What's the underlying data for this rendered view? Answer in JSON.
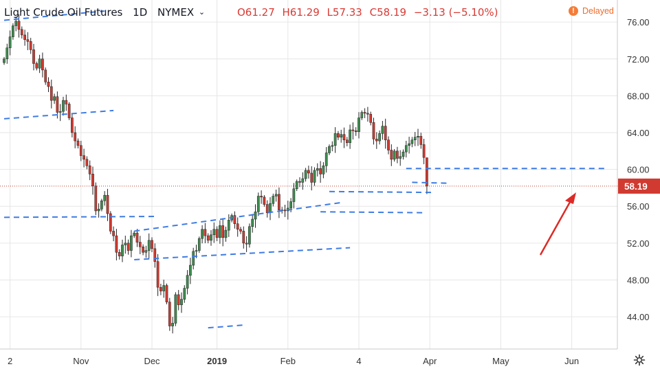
{
  "header": {
    "symbol": "Light Crude Oil Futures",
    "interval": "1D",
    "exchange": "NYMEX",
    "open": "O61.27",
    "high": "H61.29",
    "low": "L57.33",
    "close": "C58.19",
    "change": "−3.13 (−5.10%)",
    "delayed_label": "Delayed",
    "delayed_icon": "!"
  },
  "colors": {
    "up": "#3e8c4f",
    "down": "#d03a30",
    "trendline": "#3d7be3",
    "price_line": "#c0392b",
    "grid": "#e6e6e6",
    "arrow": "#dd2a26"
  },
  "chart_data": {
    "type": "candlestick",
    "instrument": "Light Crude Oil Futures",
    "y_axis": {
      "ticks": [
        44,
        48,
        52,
        56,
        60,
        64,
        68,
        72,
        76
      ],
      "ylim": [
        40.5,
        78.4
      ],
      "labels": [
        "44.00",
        "48.00",
        "52.00",
        "56.00",
        "60.00",
        "64.00",
        "68.00",
        "72.00",
        "76.00"
      ]
    },
    "x_axis": {
      "labels": [
        "2",
        "Nov",
        "Dec",
        "2019",
        "Feb",
        "4",
        "Apr",
        "May",
        "Jun"
      ],
      "label_index": [
        2,
        26,
        50,
        72,
        96,
        120,
        144,
        168,
        192
      ]
    },
    "last_price": {
      "value": 58.19,
      "label": "58.19"
    },
    "closes": [
      72.0,
      73.2,
      74.4,
      75.6,
      76.1,
      75.2,
      74.6,
      74.1,
      73.9,
      73.0,
      71.5,
      71.0,
      72.0,
      70.8,
      69.5,
      69.0,
      67.5,
      67.9,
      66.2,
      66.3,
      67.5,
      67.1,
      65.6,
      64.0,
      63.1,
      62.6,
      61.5,
      61.1,
      60.4,
      59.5,
      58.2,
      55.5,
      55.7,
      56.6,
      57.2,
      55.2,
      53.3,
      52.8,
      51.0,
      50.6,
      51.8,
      52.0,
      51.2,
      52.8,
      53.1,
      52.1,
      51.6,
      51.0,
      51.2,
      52.3,
      51.4,
      50.0,
      47.2,
      46.8,
      47.4,
      45.6,
      43.0,
      43.3,
      46.4,
      45.3,
      45.9,
      47.1,
      48.5,
      49.6,
      51.1,
      51.2,
      52.5,
      53.5,
      52.8,
      52.3,
      52.9,
      53.5,
      52.6,
      53.9,
      52.6,
      53.4,
      54.5,
      55.0,
      54.1,
      53.5,
      53.3,
      52.0,
      51.9,
      53.8,
      54.6,
      55.4,
      57.1,
      57.0,
      56.2,
      55.3,
      56.3,
      57.1,
      57.3,
      55.6,
      55.6,
      55.5,
      55.8,
      56.5,
      57.9,
      58.7,
      58.6,
      59.0,
      59.9,
      59.6,
      58.6,
      59.9,
      60.1,
      59.5,
      60.4,
      61.8,
      62.5,
      62.6,
      63.9,
      63.5,
      63.8,
      63.2,
      62.9,
      64.3,
      64.2,
      64.1,
      65.6,
      66.2,
      66.1,
      66.0,
      65.1,
      63.3,
      63.1,
      63.9,
      64.7,
      63.2,
      62.1,
      61.1,
      62.0,
      61.2,
      61.4,
      61.9,
      62.6,
      62.8,
      63.2,
      63.5,
      63.6,
      62.7,
      61.3,
      58.2
    ],
    "last_bar": {
      "open": 61.27,
      "high": 61.29,
      "low": 57.33,
      "close": 58.19,
      "change": -3.13,
      "change_pct": -5.1
    },
    "support_resistance": [
      60.0,
      58.19
    ]
  }
}
